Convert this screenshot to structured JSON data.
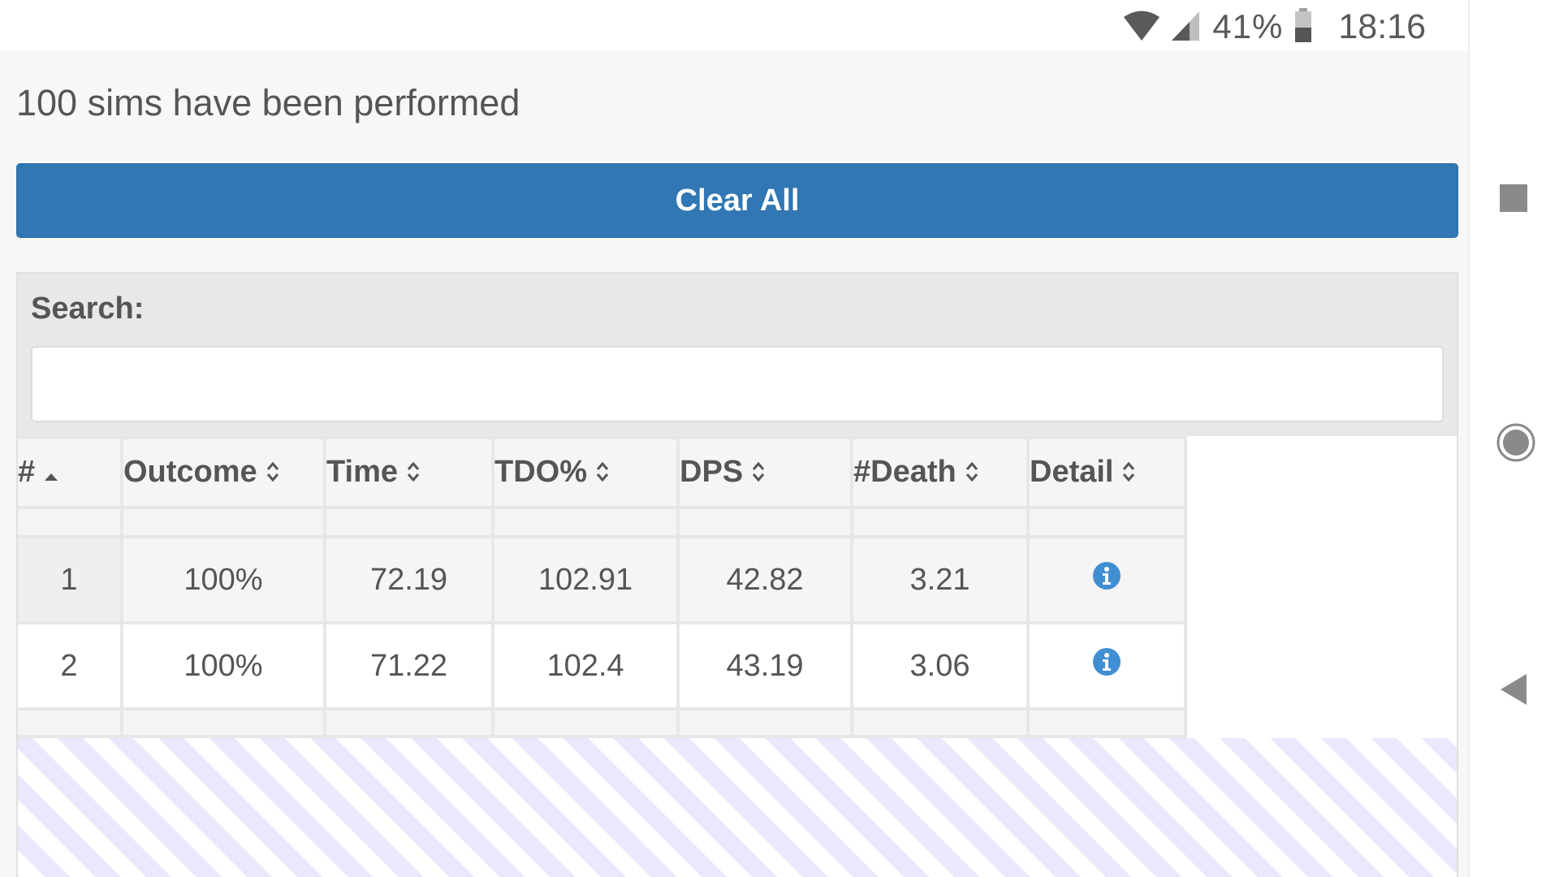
{
  "status": {
    "battery_pct": "41%",
    "time": "18:16"
  },
  "main": {
    "sims_text": "100 sims have been performed",
    "clear_button": "Clear All",
    "search_label": "Search:",
    "search_value": ""
  },
  "table": {
    "headers": [
      "#",
      "Outcome",
      "Time",
      "TDO%",
      "DPS",
      "#Death",
      "Detail"
    ],
    "rows": [
      [
        "1",
        "100%",
        "72.19",
        "102.91",
        "42.82",
        "3.21"
      ],
      [
        "2",
        "100%",
        "71.22",
        "102.4",
        "43.19",
        "3.06"
      ]
    ]
  },
  "colors": {
    "accent": "#3077b3",
    "info": "#3f8fd2",
    "hatch": "#e9e8fc"
  },
  "icons": [
    "wifi-icon",
    "signal-icon",
    "battery-icon",
    "sort-asc-icon",
    "sort-icon",
    "info-icon",
    "nav-recents-icon",
    "nav-home-icon",
    "nav-back-icon"
  ]
}
